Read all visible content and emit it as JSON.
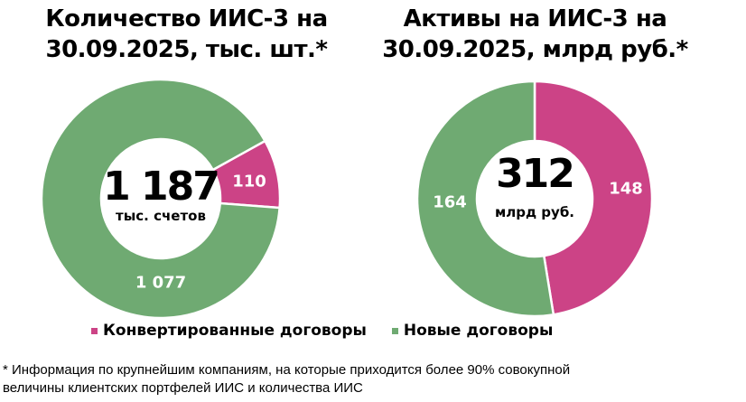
{
  "colors": {
    "converted": "#CC4386",
    "new": "#6FAA72"
  },
  "left_chart": {
    "title_line1": "Количество ИИС-3 на",
    "title_line2": "30.09.2025, тыс. шт.*",
    "total": "1 187",
    "total_unit": "тыс. счетов",
    "converted_label": "110",
    "new_label": "1 077"
  },
  "right_chart": {
    "title_line1": "Активы на ИИС-3 на",
    "title_line2": "30.09.2025, млрд руб.*",
    "total": "312",
    "total_unit": "млрд руб.",
    "converted_label": "148",
    "new_label": "164"
  },
  "legend": {
    "converted": "Конвертированные договоры",
    "new": "Новые договоры"
  },
  "footnote": {
    "line1": "* Информация по крупнейшим компаниям, на которые приходится более 90% совокупной",
    "line2": "величины клиентских портфелей ИИС и количества ИИС"
  },
  "chart_data": [
    {
      "type": "pie",
      "title": "Количество ИИС-3 на 30.09.2025, тыс. шт.*",
      "categories": [
        "Конвертированные договоры",
        "Новые договоры"
      ],
      "values": [
        110,
        1077
      ],
      "total": 1187,
      "unit": "тыс. счетов",
      "donut": true,
      "legend_position": "bottom"
    },
    {
      "type": "pie",
      "title": "Активы на ИИС-3 на 30.09.2025, млрд руб.*",
      "categories": [
        "Конвертированные договоры",
        "Новые договоры"
      ],
      "values": [
        148,
        164
      ],
      "total": 312,
      "unit": "млрд руб.",
      "donut": true,
      "legend_position": "bottom"
    }
  ]
}
